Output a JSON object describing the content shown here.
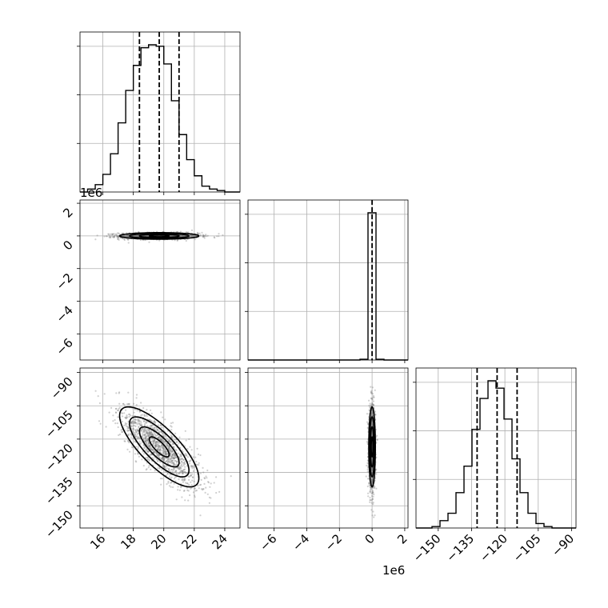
{
  "chart_data": {
    "type": "corner",
    "title": "",
    "parameters": [
      {
        "index": 0,
        "range": [
          14.5,
          25.0
        ],
        "ticks": [
          16,
          18,
          20,
          22,
          24
        ],
        "tick_labels": [
          "16",
          "18",
          "20",
          "22",
          "24"
        ],
        "offset_label": ""
      },
      {
        "index": 1,
        "range": [
          -7.6,
          2.2
        ],
        "ticks": [
          -6,
          -4,
          -2,
          0,
          2
        ],
        "tick_labels": [
          "−6",
          "−4",
          "−2",
          "0",
          "2"
        ],
        "offset_label": "1e6"
      },
      {
        "index": 2,
        "range": [
          -160,
          -88
        ],
        "ticks": [
          -150,
          -135,
          -120,
          -105,
          -90
        ],
        "tick_labels": [
          "−150",
          "−135",
          "−120",
          "−105",
          "−90"
        ],
        "offset_label": ""
      }
    ],
    "quantiles": [
      {
        "param": 0,
        "values": [
          18.4,
          19.7,
          21.0
        ]
      },
      {
        "param": 1,
        "values": [
          0.0
        ]
      },
      {
        "param": 2,
        "values": [
          -132.5,
          -123.5,
          -114.5
        ]
      }
    ],
    "histograms": [
      {
        "param": 0,
        "bin_edges": [
          14.5,
          15.0,
          15.5,
          16.0,
          16.5,
          17.0,
          17.5,
          18.0,
          18.5,
          19.0,
          19.5,
          20.0,
          20.5,
          21.0,
          21.5,
          22.0,
          22.5,
          23.0,
          23.5,
          24.0,
          24.5,
          25.0
        ],
        "counts": [
          0.0,
          0.02,
          0.05,
          0.12,
          0.26,
          0.47,
          0.69,
          0.86,
          0.98,
          1.0,
          0.99,
          0.87,
          0.62,
          0.39,
          0.22,
          0.11,
          0.04,
          0.02,
          0.01,
          0.0,
          0.0
        ]
      },
      {
        "param": 1,
        "bin_edges": [
          -7.6,
          -7.11,
          -6.62,
          -6.13,
          -5.64,
          -5.15,
          -4.66,
          -4.17,
          -3.68,
          -3.19,
          -2.7,
          -2.21,
          -1.72,
          -1.23,
          -0.74,
          -0.25,
          0.24,
          0.73,
          1.22,
          1.71,
          2.2
        ],
        "counts": [
          0,
          0,
          0,
          0,
          0,
          0,
          0,
          0,
          0,
          0,
          0,
          0,
          0,
          0,
          0.005,
          1.0,
          0.005,
          0,
          0,
          0
        ]
      },
      {
        "param": 2,
        "bin_edges": [
          -160,
          -156.4,
          -152.8,
          -149.2,
          -145.6,
          -142,
          -138.4,
          -134.8,
          -131.2,
          -127.6,
          -124,
          -120.4,
          -116.8,
          -113.2,
          -109.6,
          -106,
          -102.4,
          -98.8,
          -95.2,
          -91.6,
          -88
        ],
        "counts": [
          0.0,
          0.0,
          0.01,
          0.05,
          0.1,
          0.24,
          0.42,
          0.67,
          0.88,
          1.0,
          0.95,
          0.74,
          0.47,
          0.24,
          0.1,
          0.03,
          0.01,
          0.0,
          0.0,
          0.0
        ]
      }
    ],
    "correlations": [
      {
        "x_param": 0,
        "y_param": 1,
        "rho": 0.0
      },
      {
        "x_param": 0,
        "y_param": 2,
        "rho": -0.78
      },
      {
        "x_param": 1,
        "y_param": 2,
        "rho": 0.0
      }
    ],
    "sample_distribution": [
      {
        "param": 0,
        "mean": 19.7,
        "sd": 1.3
      },
      {
        "param": 1,
        "mean": 0.0,
        "sd": 0.1
      },
      {
        "param": 2,
        "mean": -123.5,
        "sd": 9.0
      }
    ],
    "sigma_levels": [
      0.5,
      1.0,
      1.5,
      2.0
    ],
    "grid": true
  }
}
